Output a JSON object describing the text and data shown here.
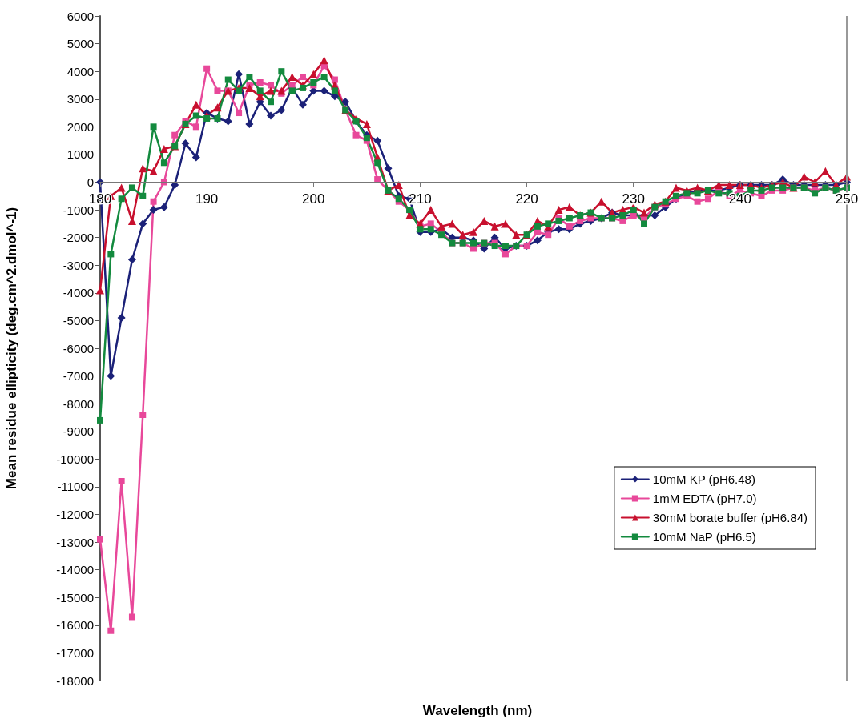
{
  "chart_data": {
    "type": "line",
    "xlabel": "Wavelength (nm)",
    "ylabel": "Mean residue ellipticity (deg.cm^2.dmol^-1)",
    "x": [
      180,
      181,
      182,
      183,
      184,
      185,
      186,
      187,
      188,
      189,
      190,
      191,
      192,
      193,
      194,
      195,
      196,
      197,
      198,
      199,
      200,
      201,
      202,
      203,
      204,
      205,
      206,
      207,
      208,
      209,
      210,
      211,
      212,
      213,
      214,
      215,
      216,
      217,
      218,
      219,
      220,
      221,
      222,
      223,
      224,
      225,
      226,
      227,
      228,
      229,
      230,
      231,
      232,
      233,
      234,
      235,
      236,
      237,
      238,
      239,
      240,
      241,
      242,
      243,
      244,
      245,
      246,
      247,
      248,
      249,
      250
    ],
    "xlim": [
      180,
      250
    ],
    "xticks": [
      180,
      190,
      200,
      210,
      220,
      230,
      240,
      250
    ],
    "ylim": [
      -18000,
      6000
    ],
    "yticks": [
      -18000,
      -17000,
      -16000,
      -15000,
      -14000,
      -13000,
      -12000,
      -11000,
      -10000,
      -9000,
      -8000,
      -7000,
      -6000,
      -5000,
      -4000,
      -3000,
      -2000,
      -1000,
      0,
      1000,
      2000,
      3000,
      4000,
      5000,
      6000
    ],
    "grid": false,
    "legend": "bottom right",
    "line_style": "solid",
    "series": [
      {
        "name": "10mM KP (pH6.48)",
        "color": "#1b2178",
        "marker": "diamond",
        "values": [
          0,
          -7000,
          -4900,
          -2800,
          -1500,
          -1000,
          -900,
          -100,
          1400,
          900,
          2500,
          2300,
          2200,
          3900,
          2100,
          2900,
          2400,
          2600,
          3400,
          2800,
          3300,
          3300,
          3100,
          2900,
          2200,
          1700,
          1500,
          500,
          -500,
          -600,
          -1800,
          -1800,
          -1700,
          -2000,
          -2000,
          -2100,
          -2400,
          -2000,
          -2400,
          -2300,
          -2300,
          -2100,
          -1800,
          -1700,
          -1700,
          -1500,
          -1400,
          -1300,
          -1100,
          -1200,
          -1200,
          -1200,
          -1200,
          -900,
          -600,
          -400,
          -300,
          -300,
          -300,
          -200,
          -100,
          -100,
          -100,
          -100,
          100,
          -100,
          -100,
          -100,
          -100,
          -100,
          0
        ]
      },
      {
        "name": "1mM EDTA (pH7.0)",
        "color": "#e8489a",
        "marker": "square",
        "values": [
          -12900,
          -16200,
          -10800,
          -15700,
          -8400,
          -700,
          0,
          1700,
          2200,
          2000,
          4100,
          3300,
          3300,
          2500,
          3500,
          3600,
          3500,
          3200,
          3500,
          3800,
          3500,
          4200,
          3700,
          2600,
          1700,
          1500,
          100,
          -300,
          -700,
          -1000,
          -1600,
          -1500,
          -1800,
          -2200,
          -2200,
          -2400,
          -2200,
          -2200,
          -2600,
          -2300,
          -2300,
          -1800,
          -1900,
          -1300,
          -1600,
          -1400,
          -1300,
          -1300,
          -1300,
          -1400,
          -1200,
          -1300,
          -900,
          -800,
          -600,
          -500,
          -700,
          -600,
          -300,
          -500,
          -300,
          -400,
          -500,
          -300,
          -300,
          -200,
          -200,
          -300,
          -200,
          -300,
          -200
        ]
      },
      {
        "name": "30mM borate buffer (pH6.84)",
        "color": "#c8102e",
        "marker": "triangle",
        "values": [
          -3900,
          -500,
          -200,
          -1400,
          500,
          400,
          1200,
          1300,
          2100,
          2800,
          2400,
          2700,
          3300,
          3400,
          3400,
          3100,
          3300,
          3300,
          3800,
          3500,
          3900,
          4400,
          3500,
          2600,
          2300,
          2100,
          900,
          -300,
          -100,
          -1200,
          -1500,
          -1000,
          -1600,
          -1500,
          -1900,
          -1800,
          -1400,
          -1600,
          -1500,
          -1900,
          -1900,
          -1400,
          -1600,
          -1000,
          -900,
          -1200,
          -1100,
          -700,
          -1100,
          -1000,
          -900,
          -1100,
          -800,
          -700,
          -200,
          -300,
          -200,
          -300,
          -100,
          -100,
          -100,
          -100,
          -200,
          -100,
          0,
          -200,
          200,
          0,
          400,
          -100,
          200
        ]
      },
      {
        "name": "10mM NaP (pH6.5)",
        "color": "#138a3e",
        "marker": "square",
        "values": [
          -8600,
          -2600,
          -600,
          -200,
          -500,
          2000,
          700,
          1300,
          2100,
          2400,
          2300,
          2300,
          3700,
          3300,
          3800,
          3300,
          2900,
          4000,
          3300,
          3400,
          3600,
          3800,
          3300,
          2600,
          2200,
          1600,
          700,
          -300,
          -600,
          -1000,
          -1700,
          -1700,
          -1900,
          -2200,
          -2200,
          -2200,
          -2200,
          -2300,
          -2300,
          -2300,
          -1900,
          -1600,
          -1500,
          -1400,
          -1300,
          -1200,
          -1100,
          -1300,
          -1300,
          -1200,
          -1000,
          -1500,
          -900,
          -700,
          -500,
          -400,
          -400,
          -300,
          -400,
          -400,
          -500,
          -300,
          -300,
          -200,
          -200,
          -200,
          -200,
          -400,
          -200,
          -300,
          -200
        ]
      }
    ]
  }
}
